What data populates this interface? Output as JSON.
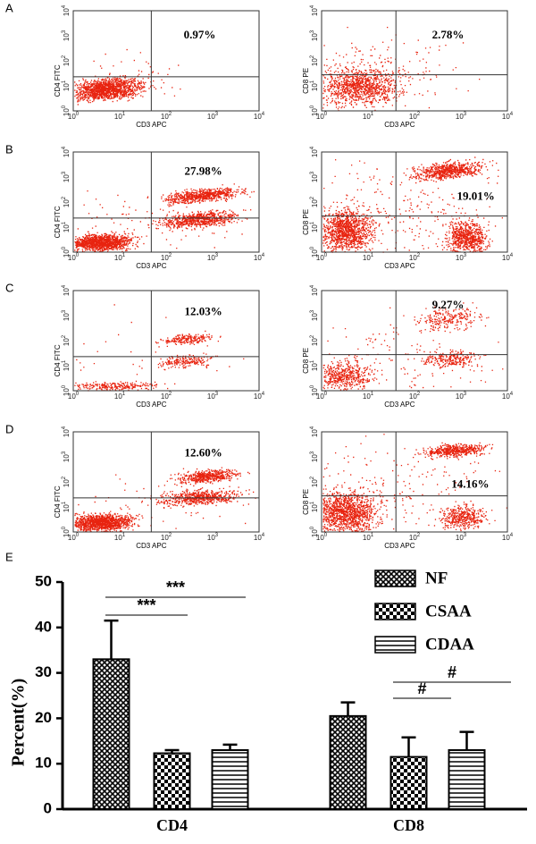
{
  "flow_axis": {
    "base": "10",
    "exponents": [
      "0",
      "1",
      "2",
      "3",
      "4"
    ]
  },
  "flow_panels": [
    {
      "label": "A",
      "plots": [
        {
          "x_label": "CD3 APC",
          "y_label": "CD4 FITC",
          "percent": "0.97%"
        },
        {
          "x_label": "CD3 APC",
          "y_label": "CD8 PE",
          "percent": "2.78%"
        }
      ]
    },
    {
      "label": "B",
      "plots": [
        {
          "x_label": "CD3 APC",
          "y_label": "CD4 FITC",
          "percent": "27.98%"
        },
        {
          "x_label": "CD3 APC",
          "y_label": "CD8 PE",
          "percent": "19.01%"
        }
      ]
    },
    {
      "label": "C",
      "plots": [
        {
          "x_label": "CD3 APC",
          "y_label": "CD4 FITC",
          "percent": "12.03%"
        },
        {
          "x_label": "CD3 APC",
          "y_label": "CD8 PE",
          "percent": "9.27%"
        }
      ]
    },
    {
      "label": "D",
      "plots": [
        {
          "x_label": "CD3 APC",
          "y_label": "CD4 FITC",
          "percent": "12.60%"
        },
        {
          "x_label": "CD3 APC",
          "y_label": "CD8 PE",
          "percent": "14.16%"
        }
      ]
    }
  ],
  "chart_data": {
    "type": "bar",
    "panel_label": "E",
    "y_label": "Percent(%)",
    "categories": [
      "CD4",
      "CD8"
    ],
    "series": [
      {
        "name": "NF",
        "pattern": "crosshatch",
        "values": [
          33,
          20.5
        ],
        "errors": [
          8.5,
          3
        ]
      },
      {
        "name": "CSAA",
        "pattern": "checker",
        "values": [
          12.3,
          11.5
        ],
        "errors": [
          0.7,
          4.3
        ]
      },
      {
        "name": "CDAA",
        "pattern": "hlines",
        "values": [
          13,
          13
        ],
        "errors": [
          1.2,
          4
        ]
      }
    ],
    "ylim": [
      0,
      50
    ],
    "yticks": [
      0,
      10,
      20,
      30,
      40,
      50
    ],
    "annotations": [
      "***",
      "***",
      "#",
      "#"
    ],
    "legend": "top-right"
  }
}
